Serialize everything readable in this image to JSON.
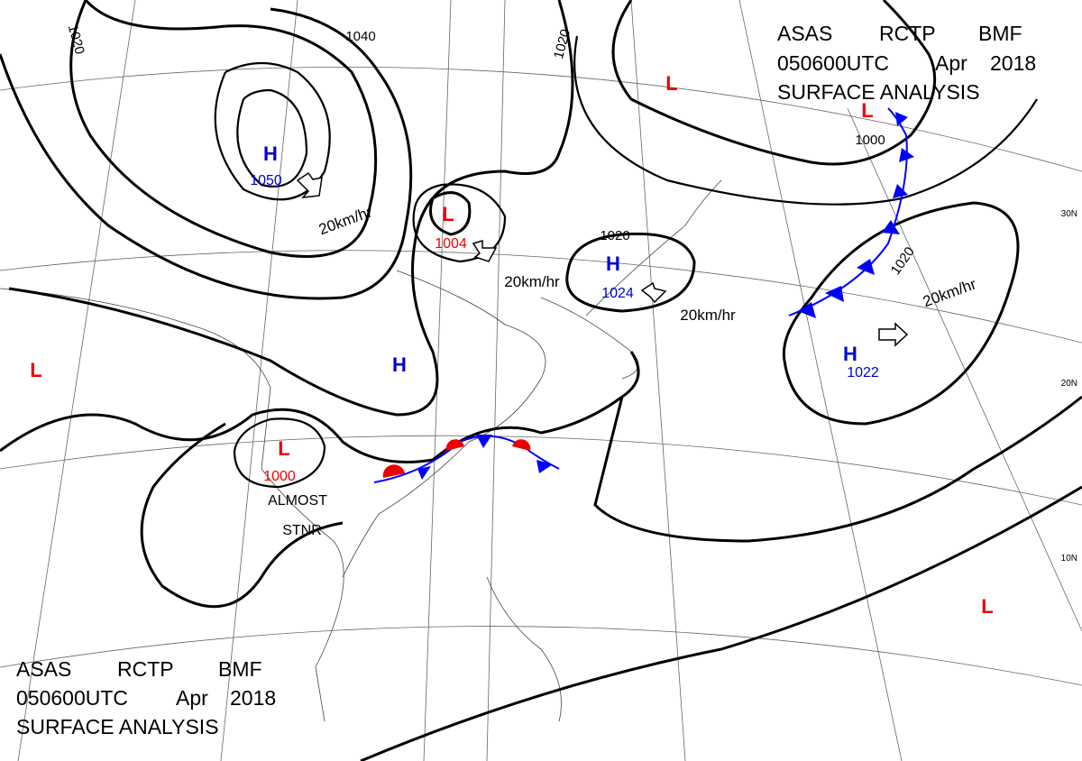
{
  "header_top": {
    "line1": [
      "ASAS",
      "RCTP",
      "BMF"
    ],
    "line2": [
      "050600UTC",
      "Apr",
      "2018"
    ],
    "line3": "SURFACE ANALYSIS"
  },
  "header_bottom": {
    "line1": [
      "ASAS",
      "RCTP",
      "BMF"
    ],
    "line2": [
      "050600UTC",
      "Apr",
      "2018"
    ],
    "line3": "SURFACE ANALYSIS"
  },
  "pressure_centers": [
    {
      "type": "H",
      "pressure": 1050
    },
    {
      "type": "L",
      "pressure": 1004
    },
    {
      "type": "H",
      "pressure": 1024
    },
    {
      "type": "H",
      "pressure": 1022
    },
    {
      "type": "H"
    },
    {
      "type": "L",
      "pressure": 1000
    },
    {
      "type": "L"
    },
    {
      "type": "L"
    },
    {
      "type": "L"
    },
    {
      "type": "L"
    }
  ],
  "isobar_labels": [
    1020,
    1040,
    1020,
    1020,
    1020,
    1000
  ],
  "motion_labels": [
    "20km/hr",
    "20km/hr",
    "20km/hr",
    "20km/hr"
  ],
  "front_note": [
    "ALMOST",
    "STNR"
  ],
  "latitude_labels": [
    "30N",
    "20N",
    "10N"
  ]
}
